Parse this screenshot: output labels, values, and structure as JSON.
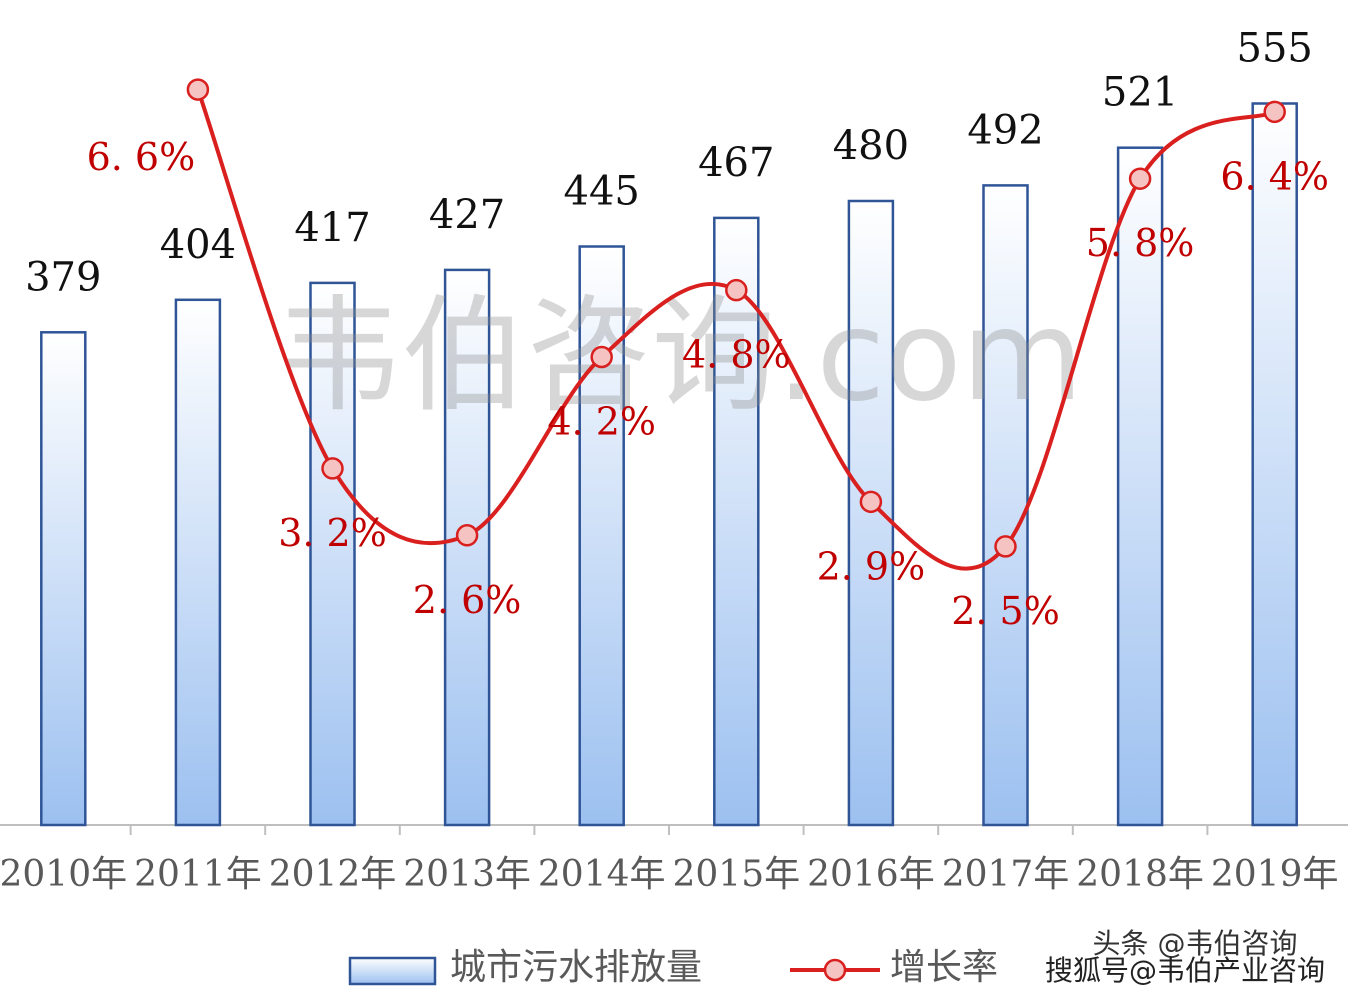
{
  "chart_data": {
    "type": "bar_line",
    "categories": [
      "2010年",
      "2011年",
      "2012年",
      "2013年",
      "2014年",
      "2015年",
      "2016年",
      "2017年",
      "2018年",
      "2019年"
    ],
    "series": [
      {
        "name": "城市污水排放量",
        "type": "bar",
        "color": "#2f5597",
        "values": [
          379,
          404,
          417,
          427,
          445,
          467,
          480,
          492,
          521,
          555
        ]
      },
      {
        "name": "增长率",
        "type": "line",
        "axis": "y2",
        "color": "#d9201f",
        "values": [
          null,
          6.6,
          3.2,
          2.6,
          4.2,
          4.8,
          2.9,
          2.5,
          5.8,
          6.4
        ],
        "value_labels": [
          null,
          "6. 6%",
          "3. 2%",
          "2. 6%",
          "4. 2%",
          "4. 8%",
          "2. 9%",
          "2. 5%",
          "5. 8%",
          "6. 4%"
        ]
      }
    ],
    "ylim": [
      0,
      600
    ],
    "y2lim": [
      0,
      7
    ],
    "legend": "bottom",
    "watermarks": [
      "韦伯咨询.com",
      "头条 @韦伯咨询",
      "搜狐号@韦伯产业咨询"
    ]
  }
}
